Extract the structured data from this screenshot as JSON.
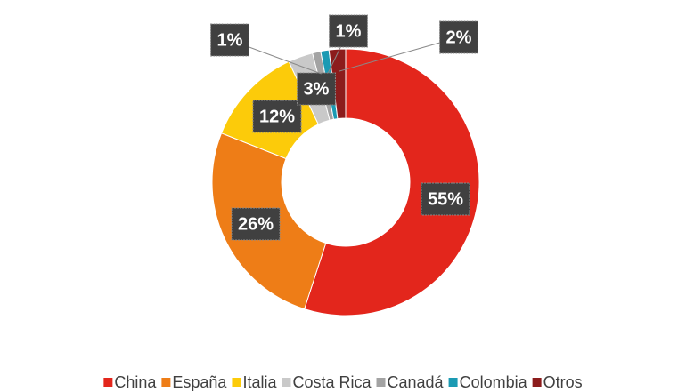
{
  "chart_data": {
    "type": "donut",
    "categories": [
      "China",
      "España",
      "Italia",
      "Costa Rica",
      "Canadá",
      "Colombia",
      "Otros"
    ],
    "values": [
      55,
      26,
      12,
      3,
      1,
      1,
      2
    ],
    "value_labels": [
      "55%",
      "26%",
      "12%",
      "3%",
      "1%",
      "1%",
      "2%"
    ],
    "colors": [
      "#e3261c",
      "#ee7d17",
      "#fccb0a",
      "#c9c9c9",
      "#a3a3a3",
      "#1b9ab3",
      "#8c1c1c"
    ],
    "legend": "bottom"
  }
}
